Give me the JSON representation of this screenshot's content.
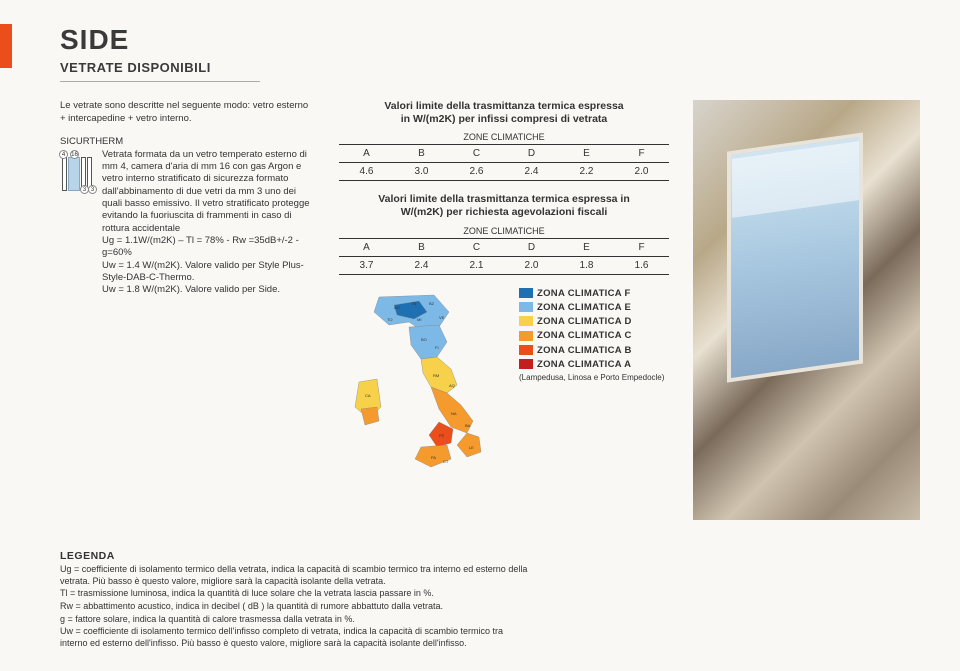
{
  "header": {
    "title": "SIDE",
    "subtitle": "VETRATE DISPONIBILI"
  },
  "left": {
    "intro": "Le vetrate sono descritte nel seguente modo: vetro esterno + intercapedine + vetro interno.",
    "product_name": "SICURTHERM",
    "glazing_dims": {
      "outer": "4",
      "gap": "16",
      "inner1": "3",
      "inner2": "3"
    },
    "body": "Vetrata formata da un vetro temperato esterno di mm 4, camera d'aria di mm 16 con gas Argon e vetro interno stratificato di sicurezza formato dall'abbinamento di due vetri da mm 3 uno dei quali basso emissivo. Il vetro stratificato protegge evitando la fuoriuscita di frammenti in caso di rottura accidentale",
    "specs": [
      "Ug = 1.1W/(m2K) – Tl = 78% - Rw =35dB+/-2 - g=60%",
      "Uw = 1.4 W/(m2K). Valore valido per Style Plus-Style-DAB-C-Thermo.",
      "Uw = 1.8 W/(m2K). Valore valido per Side."
    ]
  },
  "tables": {
    "title1_l1": "Valori limite della trasmittanza termica espressa",
    "title1_l2": "in W/(m2K) per infissi compresi di vetrata",
    "title2_l1": "Valori limite della trasmittanza termica espressa in",
    "title2_l2": "W/(m2K) per richiesta agevolazioni fiscali",
    "zone_caption": "ZONE CLIMATICHE",
    "headers": [
      "A",
      "B",
      "C",
      "D",
      "E",
      "F"
    ],
    "row1": [
      "4.6",
      "3.0",
      "2.6",
      "2.4",
      "2.2",
      "2.0"
    ],
    "row2": [
      "3.7",
      "2.4",
      "2.1",
      "2.0",
      "1.8",
      "1.6"
    ]
  },
  "zones": [
    {
      "label": "ZONA CLIMATICA F",
      "color": "#1f6fb3"
    },
    {
      "label": "ZONA CLIMATICA E",
      "color": "#7db9e6"
    },
    {
      "label": "ZONA CLIMATICA D",
      "color": "#f7d14a"
    },
    {
      "label": "ZONA CLIMATICA C",
      "color": "#f59b2e"
    },
    {
      "label": "ZONA CLIMATICA B",
      "color": "#e94e1b"
    },
    {
      "label": "ZONA CLIMATICA A",
      "color": "#c41e1e",
      "note": "(Lampedusa, Linosa e Porto Empedocle)"
    }
  ],
  "legenda": {
    "heading": "LEGENDA",
    "items": [
      "Ug = coefficiente di isolamento termico della vetrata, indica la capacità di scambio termico tra interno ed esterno della vetrata. Più basso è questo valore, migliore sarà la capacità isolante della vetrata.",
      "Tl = trasmissione luminosa, indica la quantità di luce solare che la vetrata lascia passare in %.",
      "Rw = abbattimento acustico, indica in decibel ( dB ) la quantità di rumore abbattuto dalla vetrata.",
      "g = fattore solare, indica la quantità di calore trasmessa dalla vetrata in %.",
      "Uw = coefficiente di isolamento termico dell'infisso completo di vetrata, indica la capacità di scambio termico tra interno ed esterno dell'infisso. Più basso è questo valore, migliore sarà la capacità isolante dell'infisso."
    ]
  }
}
